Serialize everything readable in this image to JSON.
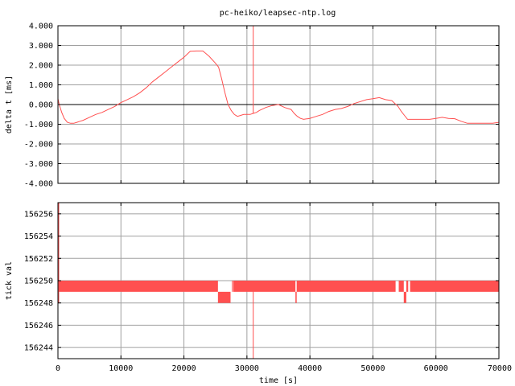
{
  "title": "pc-heiko/leapsec-ntp.log",
  "colors": {
    "series": "#ff5050",
    "axis": "#000000",
    "grid": "#a0a0a0",
    "zero": "#000000"
  },
  "chart_data": [
    {
      "type": "line",
      "ylabel": "delta t [ms]",
      "xlim": [
        0,
        70000
      ],
      "ylim": [
        -4.0,
        4.0
      ],
      "grid": true,
      "yticks": [
        "4.000",
        "3.000",
        "2.000",
        "1.000",
        "0.000",
        "-1.000",
        "-2.000",
        "-3.000",
        "-4.000"
      ],
      "ytick_values": [
        4,
        3,
        2,
        1,
        0,
        -1,
        -2,
        -3,
        -4
      ],
      "zero_line": 0,
      "series": [
        {
          "x": [
            0,
            200,
            600,
            1000,
            1500,
            2000,
            2500,
            3000,
            3500,
            4000,
            5000,
            6000,
            7000,
            8000,
            9000,
            10000,
            11000,
            12000,
            13000,
            14000,
            15000,
            16000,
            17000,
            18000,
            19000,
            20000,
            21000,
            22000,
            23000,
            24000,
            25000,
            25500,
            26000,
            26500,
            27000,
            27500,
            28000,
            28500,
            29000,
            29500,
            30000,
            30500,
            31000,
            31500,
            32000,
            33000,
            34000,
            35000,
            36000,
            37000,
            37500,
            38000,
            38500,
            39000,
            40000,
            41000,
            42000,
            43000,
            44000,
            45000,
            46000,
            47000,
            48000,
            49000,
            50000,
            51000,
            52000,
            53000,
            54000,
            54500,
            55000,
            55500,
            56000,
            57000,
            58000,
            59000,
            60000,
            61000,
            62000,
            63000,
            64000,
            65000,
            66000,
            67000,
            68000,
            69000,
            70000
          ],
          "y": [
            0.3,
            0.0,
            -0.4,
            -0.7,
            -0.9,
            -0.95,
            -0.95,
            -0.9,
            -0.85,
            -0.8,
            -0.65,
            -0.5,
            -0.4,
            -0.25,
            -0.1,
            0.1,
            0.25,
            0.4,
            0.6,
            0.85,
            1.15,
            1.4,
            1.65,
            1.9,
            2.15,
            2.4,
            2.7,
            2.72,
            2.72,
            2.45,
            2.1,
            1.9,
            1.3,
            0.6,
            0.0,
            -0.3,
            -0.5,
            -0.6,
            -0.55,
            -0.5,
            -0.5,
            -0.5,
            -0.45,
            -0.4,
            -0.3,
            -0.15,
            -0.05,
            0.0,
            -0.15,
            -0.25,
            -0.45,
            -0.6,
            -0.7,
            -0.75,
            -0.7,
            -0.6,
            -0.5,
            -0.35,
            -0.25,
            -0.2,
            -0.1,
            0.05,
            0.15,
            0.25,
            0.3,
            0.35,
            0.25,
            0.2,
            -0.1,
            -0.35,
            -0.55,
            -0.75,
            -0.75,
            -0.75,
            -0.75,
            -0.75,
            -0.7,
            -0.65,
            -0.7,
            -0.72,
            -0.85,
            -0.95,
            -0.95,
            -0.95,
            -0.95,
            -0.95,
            -0.9
          ]
        }
      ],
      "spike": {
        "x": 31000,
        "from": -0.45,
        "to": 4.0
      }
    },
    {
      "type": "step",
      "xlabel": "time [s]",
      "ylabel": "tick val",
      "xlim": [
        0,
        70000
      ],
      "ylim": [
        156243,
        156257
      ],
      "grid": true,
      "xticks": [
        "0",
        "10000",
        "20000",
        "30000",
        "40000",
        "50000",
        "60000",
        "70000"
      ],
      "xtick_values": [
        0,
        10000,
        20000,
        30000,
        40000,
        50000,
        60000,
        70000
      ],
      "yticks": [
        "156256",
        "156254",
        "156252",
        "156250",
        "156248",
        "156246",
        "156244"
      ],
      "ytick_values": [
        156256,
        156254,
        156252,
        156250,
        156248,
        156246,
        156244
      ],
      "series": [
        {
          "bands": [
            {
              "x0": 0,
              "x1": 70000,
              "y0": 156249,
              "y1": 156250
            }
          ],
          "gaps": [
            {
              "x0": 25400,
              "x1": 27600
            },
            {
              "x0": 27700,
              "x1": 27800
            },
            {
              "x0": 37700,
              "x1": 37900
            },
            {
              "x0": 53600,
              "x1": 54100
            },
            {
              "x0": 54900,
              "x1": 55300
            },
            {
              "x0": 55600,
              "x1": 55900
            }
          ],
          "low_blocks": [
            {
              "x0": 25400,
              "x1": 27400,
              "y0": 156248,
              "y1": 156249
            },
            {
              "x0": 37700,
              "x1": 37900,
              "y0": 156248,
              "y1": 156249
            },
            {
              "x0": 54900,
              "x1": 55300,
              "y0": 156248,
              "y1": 156249
            }
          ],
          "start_spike": {
            "x": 0,
            "from": 156248,
            "to": 156257
          },
          "spike": {
            "x": 31000,
            "from": 156243,
            "to": 156250
          }
        }
      ]
    }
  ]
}
